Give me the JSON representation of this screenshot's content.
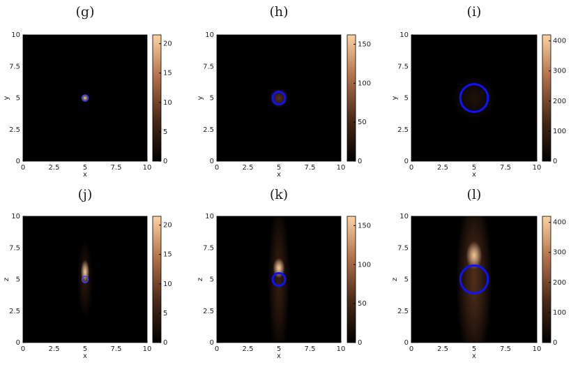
{
  "chart_data": [
    {
      "type": "heatmap",
      "title": "(g)",
      "x_label": "x",
      "y_label": "y",
      "xlim": [
        0,
        10
      ],
      "ylim": [
        0,
        10
      ],
      "xticks": [
        0,
        2.5,
        5,
        7.5,
        10
      ],
      "yticks": [
        0,
        2.5,
        5,
        7.5,
        10
      ],
      "colorbar": {
        "lim": [
          0,
          21.5
        ],
        "ticks": [
          0,
          5,
          10,
          15,
          20
        ]
      },
      "colormap": [
        "#000000",
        "#4a2a18",
        "#b0704a",
        "#fcd3a4"
      ],
      "circle": {
        "x": 5,
        "y": 5,
        "r": 0.25,
        "color": "#4040ff"
      },
      "spots": [
        {
          "x": 5,
          "y": 5,
          "sx": 0.18,
          "sy": 0.18,
          "value": 21
        }
      ]
    },
    {
      "type": "heatmap",
      "title": "(h)",
      "x_label": "x",
      "y_label": "y",
      "xlim": [
        0,
        10
      ],
      "ylim": [
        0,
        10
      ],
      "xticks": [
        0,
        2.5,
        5,
        7.5,
        10
      ],
      "yticks": [
        0,
        2.5,
        5,
        7.5,
        10
      ],
      "colorbar": {
        "lim": [
          0,
          162
        ],
        "ticks": [
          0,
          50,
          100,
          150
        ]
      },
      "colormap": [
        "#000000",
        "#4a2a18",
        "#b0704a",
        "#fcd3a4"
      ],
      "circle": {
        "x": 5,
        "y": 5,
        "r": 0.5,
        "color": "#1010ff"
      },
      "spots": [
        {
          "x": 5,
          "y": 5,
          "sx": 0.5,
          "sy": 0.5,
          "value": 60
        }
      ]
    },
    {
      "type": "heatmap",
      "title": "(i)",
      "x_label": "x",
      "y_label": "y",
      "xlim": [
        0,
        10
      ],
      "ylim": [
        0,
        10
      ],
      "xticks": [
        0,
        2.5,
        5,
        7.5,
        10
      ],
      "yticks": [
        0,
        2.5,
        5,
        7.5,
        10
      ],
      "colorbar": {
        "lim": [
          0,
          420
        ],
        "ticks": [
          0,
          100,
          200,
          300,
          400
        ]
      },
      "colormap": [
        "#000000",
        "#4a2a18",
        "#b0704a",
        "#fcd3a4"
      ],
      "circle": {
        "x": 5,
        "y": 5,
        "r": 1.1,
        "color": "#1010ff"
      },
      "spots": [
        {
          "x": 5,
          "y": 5,
          "sx": 1.1,
          "sy": 1.1,
          "value": 60
        }
      ]
    },
    {
      "type": "heatmap",
      "title": "(j)",
      "x_label": "x",
      "y_label": "z",
      "xlim": [
        0,
        10
      ],
      "ylim": [
        0,
        10
      ],
      "xticks": [
        0,
        2.5,
        5,
        7.5,
        10
      ],
      "yticks": [
        0,
        2.5,
        5,
        7.5,
        10
      ],
      "colorbar": {
        "lim": [
          0,
          21.5
        ],
        "ticks": [
          0,
          5,
          10,
          15,
          20
        ]
      },
      "colormap": [
        "#000000",
        "#4a2a18",
        "#b0704a",
        "#fcd3a4"
      ],
      "circle": {
        "x": 5,
        "y": 5,
        "r": 0.25,
        "color": "#4040ff"
      },
      "spots": [
        {
          "x": 5,
          "y": 5,
          "sx": 0.4,
          "sy": 2.0,
          "value": 4
        },
        {
          "x": 5,
          "y": 5.6,
          "sx": 0.22,
          "sy": 0.6,
          "value": 21
        }
      ]
    },
    {
      "type": "heatmap",
      "title": "(k)",
      "x_label": "x",
      "y_label": "z",
      "xlim": [
        0,
        10
      ],
      "ylim": [
        0,
        10
      ],
      "xticks": [
        0,
        2.5,
        5,
        7.5,
        10
      ],
      "yticks": [
        0,
        2.5,
        5,
        7.5,
        10
      ],
      "colorbar": {
        "lim": [
          0,
          162
        ],
        "ticks": [
          0,
          50,
          100,
          150
        ]
      },
      "colormap": [
        "#000000",
        "#4a2a18",
        "#b0704a",
        "#fcd3a4"
      ],
      "circle": {
        "x": 5,
        "y": 5,
        "r": 0.5,
        "color": "#1010ff"
      },
      "spots": [
        {
          "x": 5,
          "y": 5,
          "sx": 0.55,
          "sy": 4.0,
          "value": 40
        },
        {
          "x": 5,
          "y": 5.9,
          "sx": 0.3,
          "sy": 0.5,
          "value": 160
        }
      ]
    },
    {
      "type": "heatmap",
      "title": "(l)",
      "x_label": "x",
      "y_label": "z",
      "xlim": [
        0,
        10
      ],
      "ylim": [
        0,
        10
      ],
      "xticks": [
        0,
        2.5,
        5,
        7.5,
        10
      ],
      "yticks": [
        0,
        2.5,
        5,
        7.5,
        10
      ],
      "colorbar": {
        "lim": [
          0,
          420
        ],
        "ticks": [
          0,
          100,
          200,
          300,
          400
        ]
      },
      "colormap": [
        "#000000",
        "#4a2a18",
        "#b0704a",
        "#fcd3a4"
      ],
      "circle": {
        "x": 5,
        "y": 5,
        "r": 1.1,
        "color": "#1010ff"
      },
      "spots": [
        {
          "x": 5,
          "y": 5,
          "sx": 0.9,
          "sy": 4.5,
          "value": 150
        },
        {
          "x": 5,
          "y": 6.9,
          "sx": 0.4,
          "sy": 0.7,
          "value": 400
        }
      ]
    }
  ]
}
